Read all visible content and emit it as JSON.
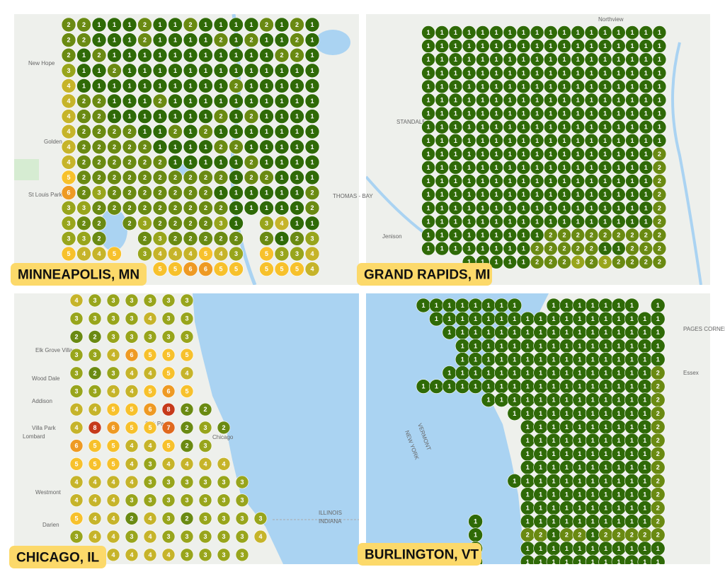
{
  "rank_colors": {
    "1": "#2f6a07",
    "2": "#6a8a12",
    "3": "#98a51c",
    "4": "#c6b42a",
    "5": "#f7c12c",
    "6": "#ee9a24",
    "7": "#e0691e",
    "8": "#c63a1b"
  },
  "panels": [
    {
      "title": "MINNEAPOLIS, MN",
      "places": [
        "New Hope",
        "Golden",
        "St Louis Park",
        "THOMAS - BAY"
      ],
      "grid": [
        [
          2,
          2,
          1,
          1,
          1,
          2,
          1,
          1,
          2,
          1,
          1,
          1,
          1,
          2,
          1,
          2,
          1
        ],
        [
          2,
          2,
          1,
          1,
          1,
          2,
          1,
          1,
          1,
          1,
          2,
          1,
          2,
          1,
          1,
          2,
          1
        ],
        [
          2,
          1,
          2,
          1,
          1,
          1,
          1,
          1,
          1,
          1,
          1,
          1,
          1,
          1,
          2,
          2,
          1
        ],
        [
          3,
          1,
          1,
          2,
          1,
          1,
          1,
          1,
          1,
          1,
          1,
          1,
          1,
          1,
          1,
          1,
          1
        ],
        [
          4,
          1,
          1,
          1,
          1,
          1,
          1,
          1,
          1,
          1,
          1,
          2,
          1,
          1,
          1,
          1,
          1
        ],
        [
          4,
          2,
          2,
          1,
          1,
          1,
          2,
          1,
          1,
          1,
          1,
          1,
          1,
          1,
          1,
          1,
          1
        ],
        [
          4,
          2,
          2,
          1,
          1,
          1,
          1,
          1,
          1,
          1,
          2,
          1,
          2,
          1,
          1,
          1,
          1
        ],
        [
          4,
          2,
          2,
          2,
          2,
          1,
          1,
          2,
          1,
          2,
          1,
          1,
          1,
          1,
          1,
          1,
          1
        ],
        [
          4,
          2,
          2,
          2,
          2,
          2,
          1,
          1,
          1,
          1,
          2,
          2,
          1,
          1,
          1,
          1,
          1
        ],
        [
          4,
          2,
          2,
          2,
          2,
          2,
          2,
          1,
          1,
          1,
          1,
          1,
          2,
          1,
          1,
          1,
          1
        ],
        [
          5,
          2,
          2,
          2,
          2,
          2,
          2,
          2,
          2,
          2,
          2,
          1,
          2,
          2,
          1,
          1,
          1
        ],
        [
          6,
          2,
          3,
          2,
          2,
          2,
          2,
          2,
          2,
          2,
          1,
          1,
          1,
          1,
          1,
          1,
          2
        ],
        [
          3,
          3,
          2,
          2,
          2,
          2,
          2,
          2,
          2,
          2,
          2,
          1,
          1,
          1,
          1,
          1,
          2
        ],
        [
          3,
          2,
          2,
          null,
          2,
          3,
          2,
          2,
          2,
          2,
          3,
          1,
          null,
          3,
          4,
          1,
          1
        ],
        [
          3,
          3,
          2,
          null,
          null,
          2,
          3,
          2,
          2,
          2,
          2,
          2,
          null,
          2,
          1,
          2,
          3
        ],
        [
          5,
          4,
          4,
          5,
          null,
          3,
          4,
          4,
          4,
          5,
          4,
          3,
          null,
          5,
          3,
          3,
          4
        ],
        [
          null,
          null,
          null,
          null,
          null,
          null,
          5,
          5,
          6,
          6,
          5,
          5,
          null,
          5,
          5,
          5,
          4
        ]
      ]
    },
    {
      "title": "GRAND RAPIDS, MI",
      "places": [
        "Northview",
        "STANDALE",
        "Jenison"
      ],
      "grid": [
        [
          1,
          1,
          1,
          1,
          1,
          1,
          1,
          1,
          1,
          1,
          1,
          1,
          1,
          1,
          1,
          1,
          1,
          1
        ],
        [
          1,
          1,
          1,
          1,
          1,
          1,
          1,
          1,
          1,
          1,
          1,
          1,
          1,
          1,
          1,
          1,
          1,
          1
        ],
        [
          1,
          1,
          1,
          1,
          1,
          1,
          1,
          1,
          1,
          1,
          1,
          1,
          1,
          1,
          1,
          1,
          1,
          1
        ],
        [
          1,
          1,
          1,
          1,
          1,
          1,
          1,
          1,
          1,
          1,
          1,
          1,
          1,
          1,
          1,
          1,
          1,
          1
        ],
        [
          1,
          1,
          1,
          1,
          1,
          1,
          1,
          1,
          1,
          1,
          1,
          1,
          1,
          1,
          1,
          1,
          1,
          1
        ],
        [
          1,
          1,
          1,
          1,
          1,
          1,
          1,
          1,
          1,
          1,
          1,
          1,
          1,
          1,
          1,
          1,
          1,
          1
        ],
        [
          1,
          1,
          1,
          1,
          1,
          1,
          1,
          1,
          1,
          1,
          1,
          1,
          1,
          1,
          1,
          1,
          1,
          1
        ],
        [
          1,
          1,
          1,
          1,
          1,
          1,
          1,
          1,
          1,
          1,
          1,
          1,
          1,
          1,
          1,
          1,
          1,
          1
        ],
        [
          1,
          1,
          1,
          1,
          1,
          1,
          1,
          1,
          1,
          1,
          1,
          1,
          1,
          1,
          1,
          1,
          1,
          1
        ],
        [
          1,
          1,
          1,
          1,
          1,
          1,
          1,
          1,
          1,
          1,
          1,
          1,
          1,
          1,
          1,
          1,
          1,
          2
        ],
        [
          1,
          1,
          1,
          1,
          1,
          1,
          1,
          1,
          1,
          1,
          1,
          1,
          1,
          1,
          1,
          1,
          1,
          2
        ],
        [
          1,
          1,
          1,
          1,
          1,
          1,
          1,
          1,
          1,
          1,
          1,
          1,
          1,
          1,
          1,
          1,
          1,
          2
        ],
        [
          1,
          1,
          1,
          1,
          1,
          1,
          1,
          1,
          1,
          1,
          1,
          1,
          1,
          1,
          1,
          1,
          1,
          2
        ],
        [
          1,
          1,
          1,
          1,
          1,
          1,
          1,
          1,
          1,
          1,
          1,
          1,
          1,
          1,
          1,
          1,
          1,
          2
        ],
        [
          1,
          1,
          1,
          1,
          1,
          1,
          1,
          1,
          1,
          1,
          1,
          1,
          1,
          1,
          1,
          1,
          1,
          2
        ],
        [
          1,
          1,
          1,
          1,
          1,
          1,
          1,
          1,
          1,
          2,
          2,
          2,
          2,
          2,
          2,
          2,
          2,
          2
        ],
        [
          1,
          1,
          1,
          1,
          1,
          1,
          1,
          1,
          2,
          2,
          2,
          2,
          2,
          1,
          1,
          2,
          2,
          2
        ],
        [
          null,
          null,
          null,
          1,
          1,
          1,
          1,
          1,
          2,
          2,
          2,
          3,
          2,
          3,
          2,
          2,
          2,
          2
        ]
      ]
    },
    {
      "title": "CHICAGO, IL",
      "places": [
        "Chicago",
        "Oak Park",
        "Villa Park",
        "Lombard",
        "Addison",
        "Wood Dale",
        "Elk Grove Village",
        "Westmont",
        "Darien",
        "ILLINOIS",
        "INDIANA"
      ],
      "grid": [
        [
          4,
          3,
          3,
          3,
          3,
          3,
          3,
          null,
          null,
          null,
          null
        ],
        [
          3,
          3,
          3,
          3,
          4,
          3,
          3,
          null,
          null,
          null,
          null
        ],
        [
          2,
          2,
          3,
          3,
          3,
          3,
          3,
          null,
          null,
          null,
          null
        ],
        [
          3,
          3,
          4,
          6,
          5,
          5,
          5,
          null,
          null,
          null,
          null
        ],
        [
          3,
          2,
          3,
          4,
          4,
          5,
          4,
          null,
          null,
          null,
          null
        ],
        [
          3,
          3,
          4,
          4,
          5,
          6,
          5,
          null,
          null,
          null,
          null
        ],
        [
          4,
          4,
          5,
          5,
          6,
          8,
          2,
          2,
          null,
          null,
          null
        ],
        [
          4,
          8,
          6,
          5,
          5,
          7,
          2,
          3,
          2,
          null,
          null
        ],
        [
          6,
          5,
          5,
          4,
          4,
          5,
          2,
          3,
          null,
          null,
          null
        ],
        [
          5,
          5,
          5,
          4,
          3,
          4,
          4,
          4,
          4,
          null,
          null
        ],
        [
          4,
          4,
          4,
          4,
          3,
          3,
          3,
          3,
          3,
          3,
          null
        ],
        [
          4,
          4,
          4,
          3,
          3,
          3,
          3,
          3,
          3,
          3,
          null
        ],
        [
          5,
          4,
          4,
          2,
          4,
          3,
          2,
          3,
          3,
          3,
          3
        ],
        [
          3,
          4,
          4,
          3,
          4,
          3,
          3,
          3,
          3,
          3,
          4
        ],
        [
          4,
          4,
          4,
          4,
          4,
          4,
          3,
          3,
          3,
          3,
          null
        ]
      ]
    },
    {
      "title": "BURLINGTON, VT",
      "places": [
        "VERMONT",
        "NEW YORK",
        "Essex",
        "PAGES CORNER"
      ],
      "grid": [
        [
          1,
          1,
          1,
          1,
          1,
          1,
          1,
          1,
          null,
          null,
          1,
          1,
          1,
          1,
          1,
          1,
          1,
          null,
          1
        ],
        [
          null,
          1,
          1,
          1,
          1,
          1,
          1,
          1,
          1,
          1,
          1,
          1,
          1,
          1,
          1,
          1,
          1,
          1,
          1
        ],
        [
          null,
          null,
          1,
          1,
          1,
          1,
          1,
          1,
          1,
          1,
          1,
          1,
          1,
          1,
          1,
          1,
          1,
          1,
          1
        ],
        [
          null,
          null,
          null,
          1,
          1,
          1,
          1,
          1,
          1,
          1,
          1,
          1,
          1,
          1,
          1,
          1,
          1,
          1,
          1
        ],
        [
          null,
          null,
          null,
          1,
          1,
          1,
          1,
          1,
          1,
          1,
          1,
          1,
          1,
          1,
          1,
          1,
          1,
          1,
          1
        ],
        [
          null,
          null,
          1,
          1,
          1,
          1,
          1,
          1,
          1,
          1,
          1,
          1,
          1,
          1,
          1,
          1,
          1,
          1,
          2
        ],
        [
          1,
          1,
          1,
          1,
          1,
          1,
          1,
          1,
          1,
          1,
          1,
          1,
          1,
          1,
          1,
          1,
          1,
          1,
          2
        ],
        [
          null,
          null,
          null,
          null,
          null,
          1,
          1,
          1,
          1,
          1,
          1,
          1,
          1,
          1,
          1,
          1,
          1,
          1,
          2
        ],
        [
          null,
          null,
          null,
          null,
          null,
          null,
          null,
          1,
          1,
          1,
          1,
          1,
          1,
          1,
          1,
          1,
          1,
          1,
          2
        ],
        [
          null,
          null,
          null,
          null,
          null,
          null,
          null,
          null,
          1,
          1,
          1,
          1,
          1,
          1,
          1,
          1,
          1,
          1,
          2
        ],
        [
          null,
          null,
          null,
          null,
          null,
          null,
          null,
          null,
          1,
          1,
          1,
          1,
          1,
          1,
          1,
          1,
          1,
          1,
          2
        ],
        [
          null,
          null,
          null,
          null,
          null,
          null,
          null,
          null,
          1,
          1,
          1,
          1,
          1,
          1,
          1,
          1,
          1,
          1,
          2
        ],
        [
          null,
          null,
          null,
          null,
          null,
          null,
          null,
          null,
          1,
          1,
          1,
          1,
          1,
          1,
          1,
          1,
          1,
          1,
          2
        ],
        [
          null,
          null,
          null,
          null,
          null,
          null,
          null,
          1,
          1,
          1,
          1,
          1,
          1,
          1,
          1,
          1,
          1,
          1,
          2
        ],
        [
          null,
          null,
          null,
          null,
          null,
          null,
          null,
          null,
          1,
          1,
          1,
          1,
          1,
          1,
          1,
          1,
          1,
          1,
          2
        ],
        [
          null,
          null,
          null,
          null,
          null,
          null,
          null,
          null,
          1,
          1,
          1,
          1,
          1,
          1,
          1,
          1,
          1,
          1,
          2
        ],
        [
          null,
          null,
          null,
          null,
          1,
          null,
          null,
          null,
          1,
          1,
          1,
          1,
          1,
          1,
          1,
          1,
          1,
          1,
          2
        ],
        [
          null,
          null,
          null,
          null,
          1,
          null,
          null,
          null,
          2,
          2,
          1,
          2,
          2,
          1,
          2,
          2,
          2,
          2,
          2
        ],
        [
          null,
          null,
          null,
          null,
          1,
          null,
          null,
          null,
          1,
          1,
          1,
          1,
          1,
          1,
          1,
          1,
          1,
          1,
          1
        ],
        [
          null,
          null,
          null,
          null,
          1,
          null,
          null,
          null,
          1,
          1,
          1,
          1,
          1,
          1,
          1,
          1,
          1,
          1,
          1
        ]
      ]
    }
  ]
}
